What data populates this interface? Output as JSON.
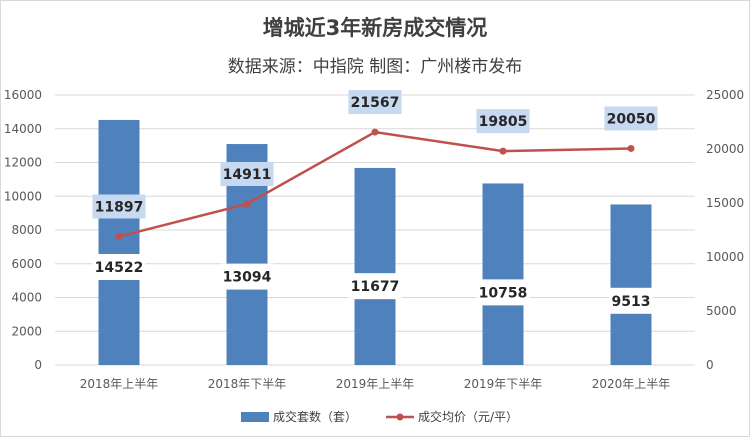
{
  "header": {
    "title": "增城近3年新房成交情况",
    "subtitle": "数据来源：中指院 制图：广州楼市发布"
  },
  "chart_data": {
    "type": "bar",
    "title": "增城近3年新房成交情况",
    "subtitle": "数据来源：中指院 制图：广州楼市发布",
    "categories": [
      "2018年上半年",
      "2018年下半年",
      "2019年上半年",
      "2019年下半年",
      "2020年上半年"
    ],
    "series": [
      {
        "name": "成交套数（套）",
        "type": "bar",
        "axis": "left",
        "color": "#4f81bd",
        "values": [
          14522,
          13094,
          11677,
          10758,
          9513
        ]
      },
      {
        "name": "成交均价（元/平）",
        "type": "line",
        "axis": "right",
        "color": "#c0504d",
        "values": [
          11897,
          14911,
          21567,
          19805,
          20050
        ]
      }
    ],
    "left_axis": {
      "ylim": [
        0,
        16000
      ],
      "ticks": [
        "0",
        "2000",
        "4000",
        "6000",
        "8000",
        "10000",
        "12000",
        "14000",
        "16000"
      ]
    },
    "right_axis": {
      "ylim": [
        0,
        25000
      ],
      "ticks": [
        "0",
        "5000",
        "10000",
        "15000",
        "20000",
        "25000"
      ]
    },
    "grid": true,
    "legend_position": "bottom"
  }
}
